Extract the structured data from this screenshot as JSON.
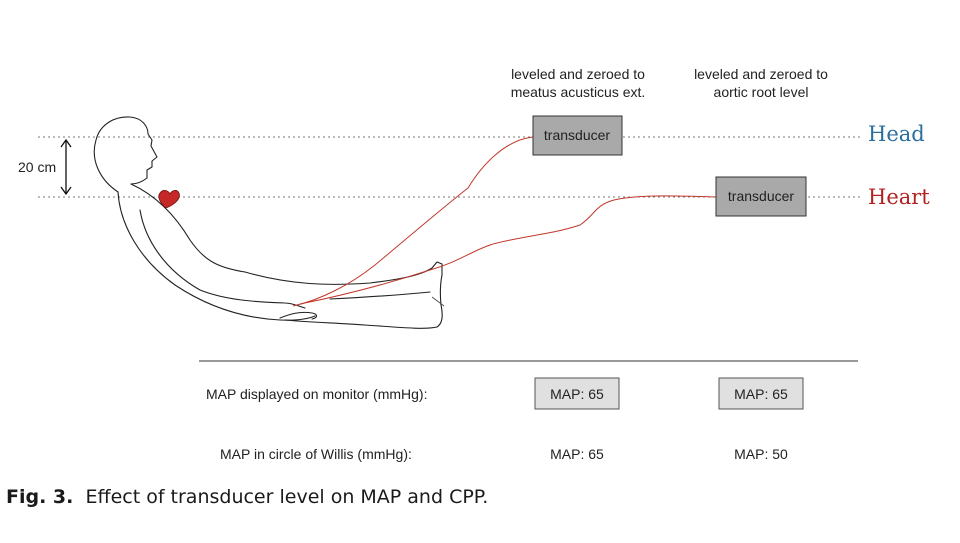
{
  "levels": {
    "head_label": "Head",
    "heart_label": "Heart",
    "height_label": "20 cm"
  },
  "transducers": [
    {
      "header_line1": "leveled and zeroed to",
      "header_line2": "meatus acusticus ext.",
      "box_label": "transducer",
      "map_monitor": "MAP: 65",
      "map_willis": "MAP: 65"
    },
    {
      "header_line1": "leveled and zeroed to",
      "header_line2": "aortic root level",
      "box_label": "transducer",
      "map_monitor": "MAP: 65",
      "map_willis": "MAP: 50"
    }
  ],
  "rows": {
    "monitor_label": "MAP displayed on monitor (mmHg):",
    "willis_label": "MAP in circle of Willis (mmHg):"
  },
  "caption": {
    "fig": "Fig. 3.",
    "text": "Effect of transducer level on MAP and CPP."
  },
  "colors": {
    "head": "#2a6f9e",
    "heart": "#b22222",
    "tubing": "#c0392b",
    "transducer_fill": "#a9a9a9",
    "map_box_fill": "#e0e0e0"
  }
}
